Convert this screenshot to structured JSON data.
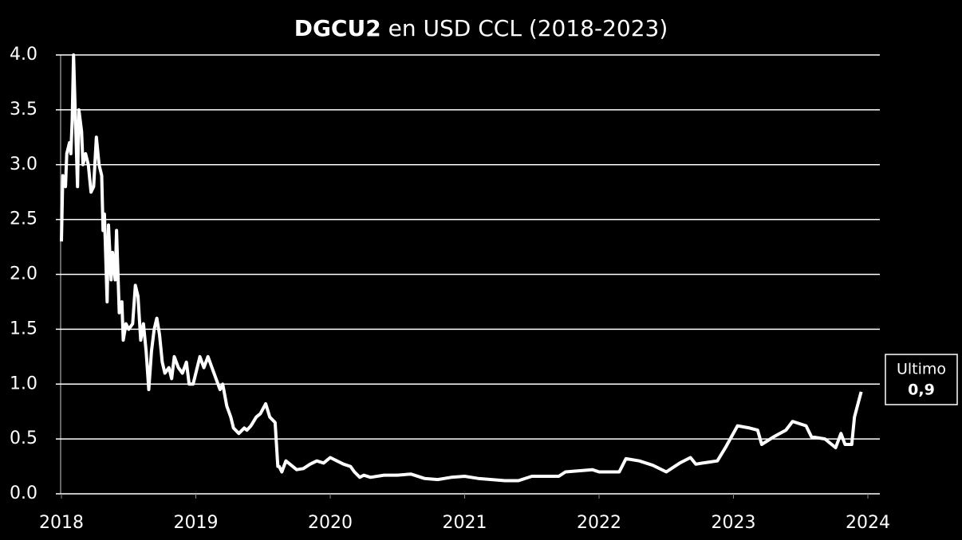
{
  "chart_data": {
    "type": "line",
    "title": [
      "DGCU2",
      "en USD CCL (2018-2023)"
    ],
    "x": [
      2018.0,
      2018.01,
      2018.03,
      2018.04,
      2018.06,
      2018.07,
      2018.08,
      2018.09,
      2018.1,
      2018.11,
      2018.12,
      2018.13,
      2018.15,
      2018.16,
      2018.18,
      2018.2,
      2018.22,
      2018.24,
      2018.26,
      2018.28,
      2018.3,
      2018.31,
      2018.32,
      2018.34,
      2018.35,
      2018.37,
      2018.38,
      2018.4,
      2018.41,
      2018.43,
      2018.45,
      2018.46,
      2018.48,
      2018.5,
      2018.53,
      2018.55,
      2018.57,
      2018.59,
      2018.61,
      2018.63,
      2018.65,
      2018.67,
      2018.69,
      2018.71,
      2018.73,
      2018.75,
      2018.77,
      2018.8,
      2018.82,
      2018.84,
      2018.87,
      2018.9,
      2018.93,
      2018.95,
      2018.98,
      2019.0,
      2019.03,
      2019.06,
      2019.09,
      2019.12,
      2019.15,
      2019.18,
      2019.2,
      2019.23,
      2019.26,
      2019.28,
      2019.32,
      2019.36,
      2019.38,
      2019.41,
      2019.45,
      2019.48,
      2019.52,
      2019.55,
      2019.59,
      2019.61,
      2019.62,
      2019.64,
      2019.67,
      2019.7,
      2019.75,
      2019.8,
      2019.85,
      2019.9,
      2019.95,
      2020.0,
      2020.05,
      2020.1,
      2020.15,
      2020.18,
      2020.22,
      2020.25,
      2020.3,
      2020.4,
      2020.5,
      2020.6,
      2020.7,
      2020.8,
      2020.9,
      2021.0,
      2021.1,
      2021.2,
      2021.3,
      2021.4,
      2021.5,
      2021.6,
      2021.7,
      2021.75,
      2021.85,
      2021.95,
      2022.0,
      2022.1,
      2022.15,
      2022.2,
      2022.3,
      2022.4,
      2022.5,
      2022.6,
      2022.68,
      2022.72,
      2022.77,
      2022.88,
      2022.94,
      2023.03,
      2023.12,
      2023.18,
      2023.21,
      2023.3,
      2023.39,
      2023.44,
      2023.54,
      2023.58,
      2023.68,
      2023.76,
      2023.8,
      2023.83,
      2023.88,
      2023.9,
      2023.95
    ],
    "series": [
      {
        "color": "#ffffff",
        "values": [
          2.3,
          2.9,
          2.8,
          3.1,
          3.2,
          3.1,
          3.4,
          4.0,
          3.6,
          3.2,
          2.8,
          3.5,
          3.3,
          3.0,
          3.1,
          3.0,
          2.75,
          2.8,
          3.25,
          3.0,
          2.9,
          2.4,
          2.55,
          1.75,
          2.45,
          1.95,
          2.2,
          1.95,
          2.4,
          1.65,
          1.75,
          1.4,
          1.55,
          1.5,
          1.55,
          1.9,
          1.8,
          1.4,
          1.55,
          1.3,
          0.95,
          1.3,
          1.5,
          1.6,
          1.45,
          1.2,
          1.1,
          1.15,
          1.05,
          1.25,
          1.15,
          1.1,
          1.2,
          1.0,
          1.0,
          1.1,
          1.25,
          1.15,
          1.25,
          1.15,
          1.05,
          0.95,
          1.0,
          0.8,
          0.7,
          0.6,
          0.55,
          0.6,
          0.58,
          0.62,
          0.7,
          0.73,
          0.82,
          0.7,
          0.65,
          0.25,
          0.25,
          0.2,
          0.3,
          0.27,
          0.22,
          0.23,
          0.27,
          0.3,
          0.28,
          0.33,
          0.3,
          0.27,
          0.25,
          0.2,
          0.15,
          0.17,
          0.15,
          0.17,
          0.17,
          0.18,
          0.14,
          0.13,
          0.15,
          0.16,
          0.14,
          0.13,
          0.12,
          0.12,
          0.16,
          0.16,
          0.16,
          0.2,
          0.21,
          0.22,
          0.2,
          0.2,
          0.2,
          0.32,
          0.3,
          0.26,
          0.2,
          0.28,
          0.33,
          0.27,
          0.28,
          0.3,
          0.42,
          0.62,
          0.6,
          0.58,
          0.45,
          0.52,
          0.58,
          0.66,
          0.62,
          0.52,
          0.5,
          0.42,
          0.55,
          0.45,
          0.45,
          0.7,
          0.93
        ]
      }
    ],
    "xlim": [
      2018,
      2024
    ],
    "xticks": [
      2018,
      2019,
      2020,
      2021,
      2022,
      2023,
      2024
    ],
    "ylim": [
      0,
      4
    ],
    "yticks": [
      {
        "value": 0,
        "label": "0.0"
      },
      0.5,
      {
        "value": 1,
        "label": "1.0"
      },
      1.5,
      {
        "value": 2,
        "label": "2.0"
      },
      2.5,
      {
        "value": 3,
        "label": "3.0"
      },
      3.5,
      {
        "value": 4,
        "label": "4.0"
      }
    ],
    "grid": true,
    "annotation": {
      "text": "Ultimo",
      "value": 0.9,
      "value_label": "0,9"
    }
  }
}
